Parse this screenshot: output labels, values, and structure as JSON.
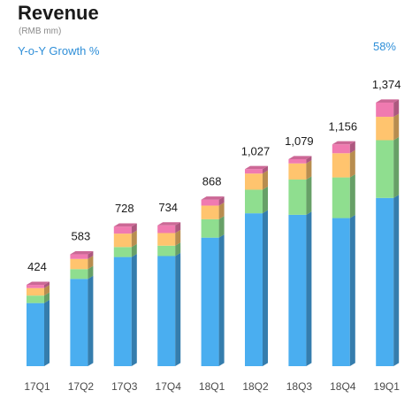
{
  "header": {
    "title": "Revenue",
    "subtitle": "(RMB mm)",
    "growth_label": "Y-o-Y Growth %",
    "growth_value": "58%"
  },
  "colors": {
    "blue": "#4aaef0",
    "green": "#8fde8f",
    "orange": "#ffc46e",
    "pink": "#f07ab0",
    "accent_text": "#2f8fd8"
  },
  "chart_data": {
    "type": "bar",
    "stacked": true,
    "categories": [
      "17Q1",
      "17Q2",
      "17Q3",
      "17Q4",
      "18Q1",
      "18Q2",
      "18Q3",
      "18Q4",
      "19Q1"
    ],
    "totals": [
      424,
      583,
      728,
      734,
      868,
      1027,
      1079,
      1156,
      1374
    ],
    "total_labels": [
      "424",
      "583",
      "728",
      "734",
      "868",
      "1,027",
      "1,079",
      "1,156",
      "1,374"
    ],
    "series": [
      {
        "color": "#4aaef0",
        "values": [
          329,
          455,
          569,
          574,
          670,
          797,
          789,
          772,
          877
        ]
      },
      {
        "color": "#8fde8f",
        "values": [
          39,
          51,
          52,
          54,
          96,
          123,
          184,
          212,
          301
        ]
      },
      {
        "color": "#ffc46e",
        "values": [
          39,
          53,
          70,
          66,
          71,
          84,
          84,
          126,
          122
        ]
      },
      {
        "color": "#f07ab0",
        "values": [
          17,
          24,
          37,
          40,
          31,
          23,
          22,
          46,
          74
        ]
      }
    ],
    "ylim": [
      0,
      1374
    ],
    "grid": false,
    "legend": "none"
  }
}
